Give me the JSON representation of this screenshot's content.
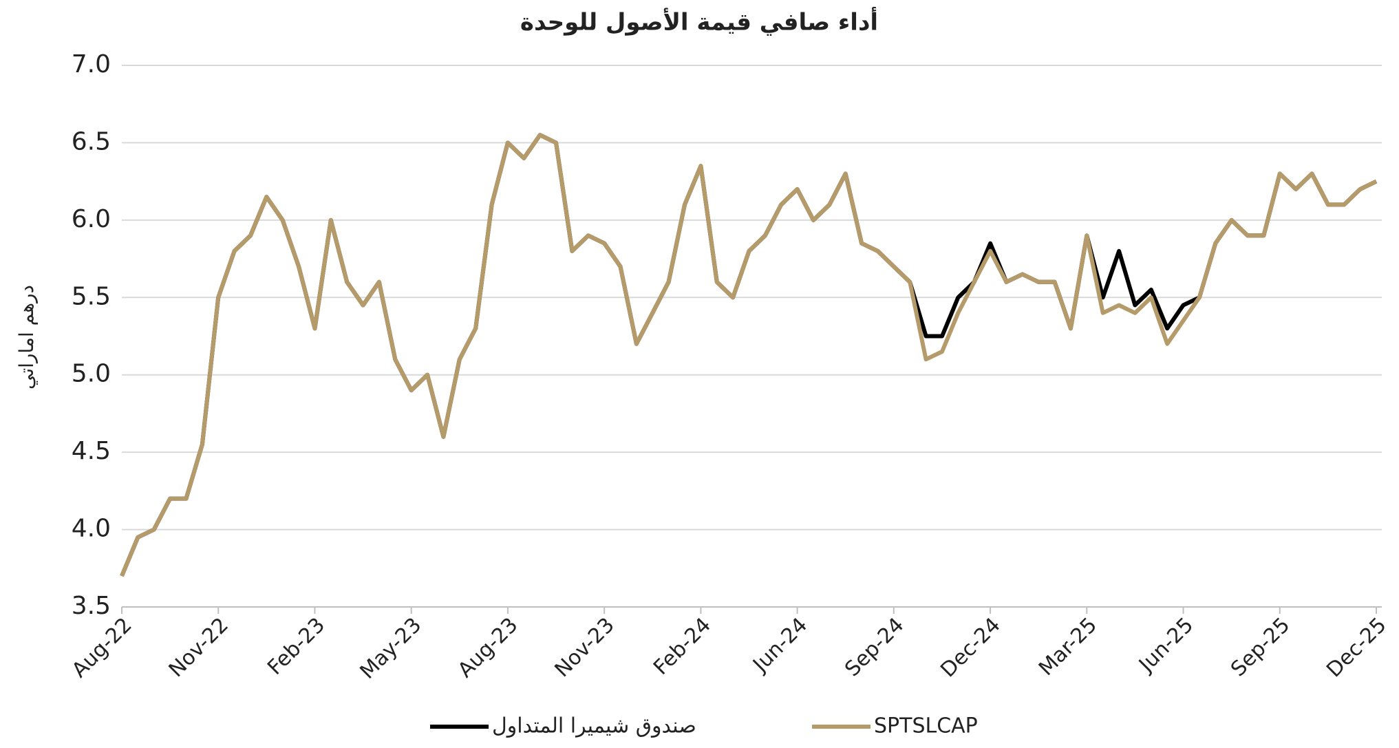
{
  "chart_data": {
    "type": "line",
    "title": "أداء صافي قيمة الأصول للوحدة",
    "y_label": "درهم اماراتي",
    "categories": [
      "Aug-22",
      null,
      null,
      null,
      null,
      null,
      "Nov-22",
      null,
      null,
      null,
      null,
      null,
      "Feb-23",
      null,
      null,
      null,
      null,
      null,
      "May-23",
      null,
      null,
      null,
      null,
      null,
      "Aug-23",
      null,
      null,
      null,
      null,
      null,
      "Nov-23",
      null,
      null,
      null,
      null,
      null,
      "Feb-24",
      null,
      null,
      null,
      null,
      null,
      "Jun-24",
      null,
      null,
      null,
      null,
      null,
      "Sep-24",
      null,
      null,
      null,
      null,
      null,
      "Dec-24",
      null,
      null,
      null,
      null,
      null,
      "Mar-25",
      null,
      null,
      null,
      null,
      null,
      "Jun-25",
      null,
      null,
      null,
      null,
      null,
      "Sep-25",
      null,
      null,
      null,
      null,
      null,
      "Dec-25"
    ],
    "series": [
      {
        "name": "صندوق شيميرا المتداول",
        "color": "#000000",
        "values": [
          3.7,
          3.95,
          4.0,
          4.2,
          4.2,
          4.55,
          5.5,
          5.8,
          5.9,
          6.15,
          6.0,
          5.7,
          5.3,
          6.0,
          5.6,
          5.45,
          5.6,
          5.1,
          4.9,
          5.0,
          4.6,
          5.1,
          5.3,
          6.1,
          6.5,
          6.4,
          6.55,
          6.5,
          5.8,
          5.9,
          5.85,
          5.7,
          5.2,
          5.4,
          5.6,
          6.1,
          6.35,
          5.6,
          5.5,
          5.8,
          5.9,
          6.1,
          6.2,
          6.0,
          6.1,
          6.3,
          5.85,
          5.8,
          5.7,
          5.6,
          5.25,
          5.25,
          5.5,
          5.6,
          5.85,
          5.6,
          5.65,
          5.6,
          5.6,
          5.3,
          5.9,
          5.5,
          5.8,
          5.45,
          5.55,
          5.3,
          5.45,
          5.5,
          5.85,
          6.0,
          5.9,
          5.9,
          6.3,
          6.2,
          6.3,
          6.1,
          6.1,
          6.2,
          6.25
        ]
      },
      {
        "name": "SPTSLCAP",
        "color": "#b59a6a",
        "values": [
          3.7,
          3.95,
          4.0,
          4.2,
          4.2,
          4.55,
          5.5,
          5.8,
          5.9,
          6.15,
          6.0,
          5.7,
          5.3,
          6.0,
          5.6,
          5.45,
          5.6,
          5.1,
          4.9,
          5.0,
          4.6,
          5.1,
          5.3,
          6.1,
          6.5,
          6.4,
          6.55,
          6.5,
          5.8,
          5.9,
          5.85,
          5.7,
          5.2,
          5.4,
          5.6,
          6.1,
          6.35,
          5.6,
          5.5,
          5.8,
          5.9,
          6.1,
          6.2,
          6.0,
          6.1,
          6.3,
          5.85,
          5.8,
          5.7,
          5.6,
          5.1,
          5.15,
          5.4,
          5.6,
          5.8,
          5.6,
          5.65,
          5.6,
          5.6,
          5.3,
          5.9,
          5.4,
          5.45,
          5.4,
          5.5,
          5.2,
          5.35,
          5.5,
          5.85,
          6.0,
          5.9,
          5.9,
          6.3,
          6.2,
          6.3,
          6.1,
          6.1,
          6.2,
          6.25
        ]
      }
    ],
    "ylim": [
      3.5,
      7.0
    ],
    "yticks": [
      {
        "value": 3.5,
        "label": "3.5"
      },
      {
        "value": 4,
        "label": "4.0"
      },
      {
        "value": 4.5,
        "label": "4.5"
      },
      {
        "value": 5,
        "label": "5.0"
      },
      {
        "value": 5.5,
        "label": "5.5"
      },
      {
        "value": 6,
        "label": "6.0"
      },
      {
        "value": 6.5,
        "label": "6.5"
      },
      {
        "value": 7,
        "label": "7.0"
      }
    ],
    "grid": true,
    "legend": "bottom"
  }
}
